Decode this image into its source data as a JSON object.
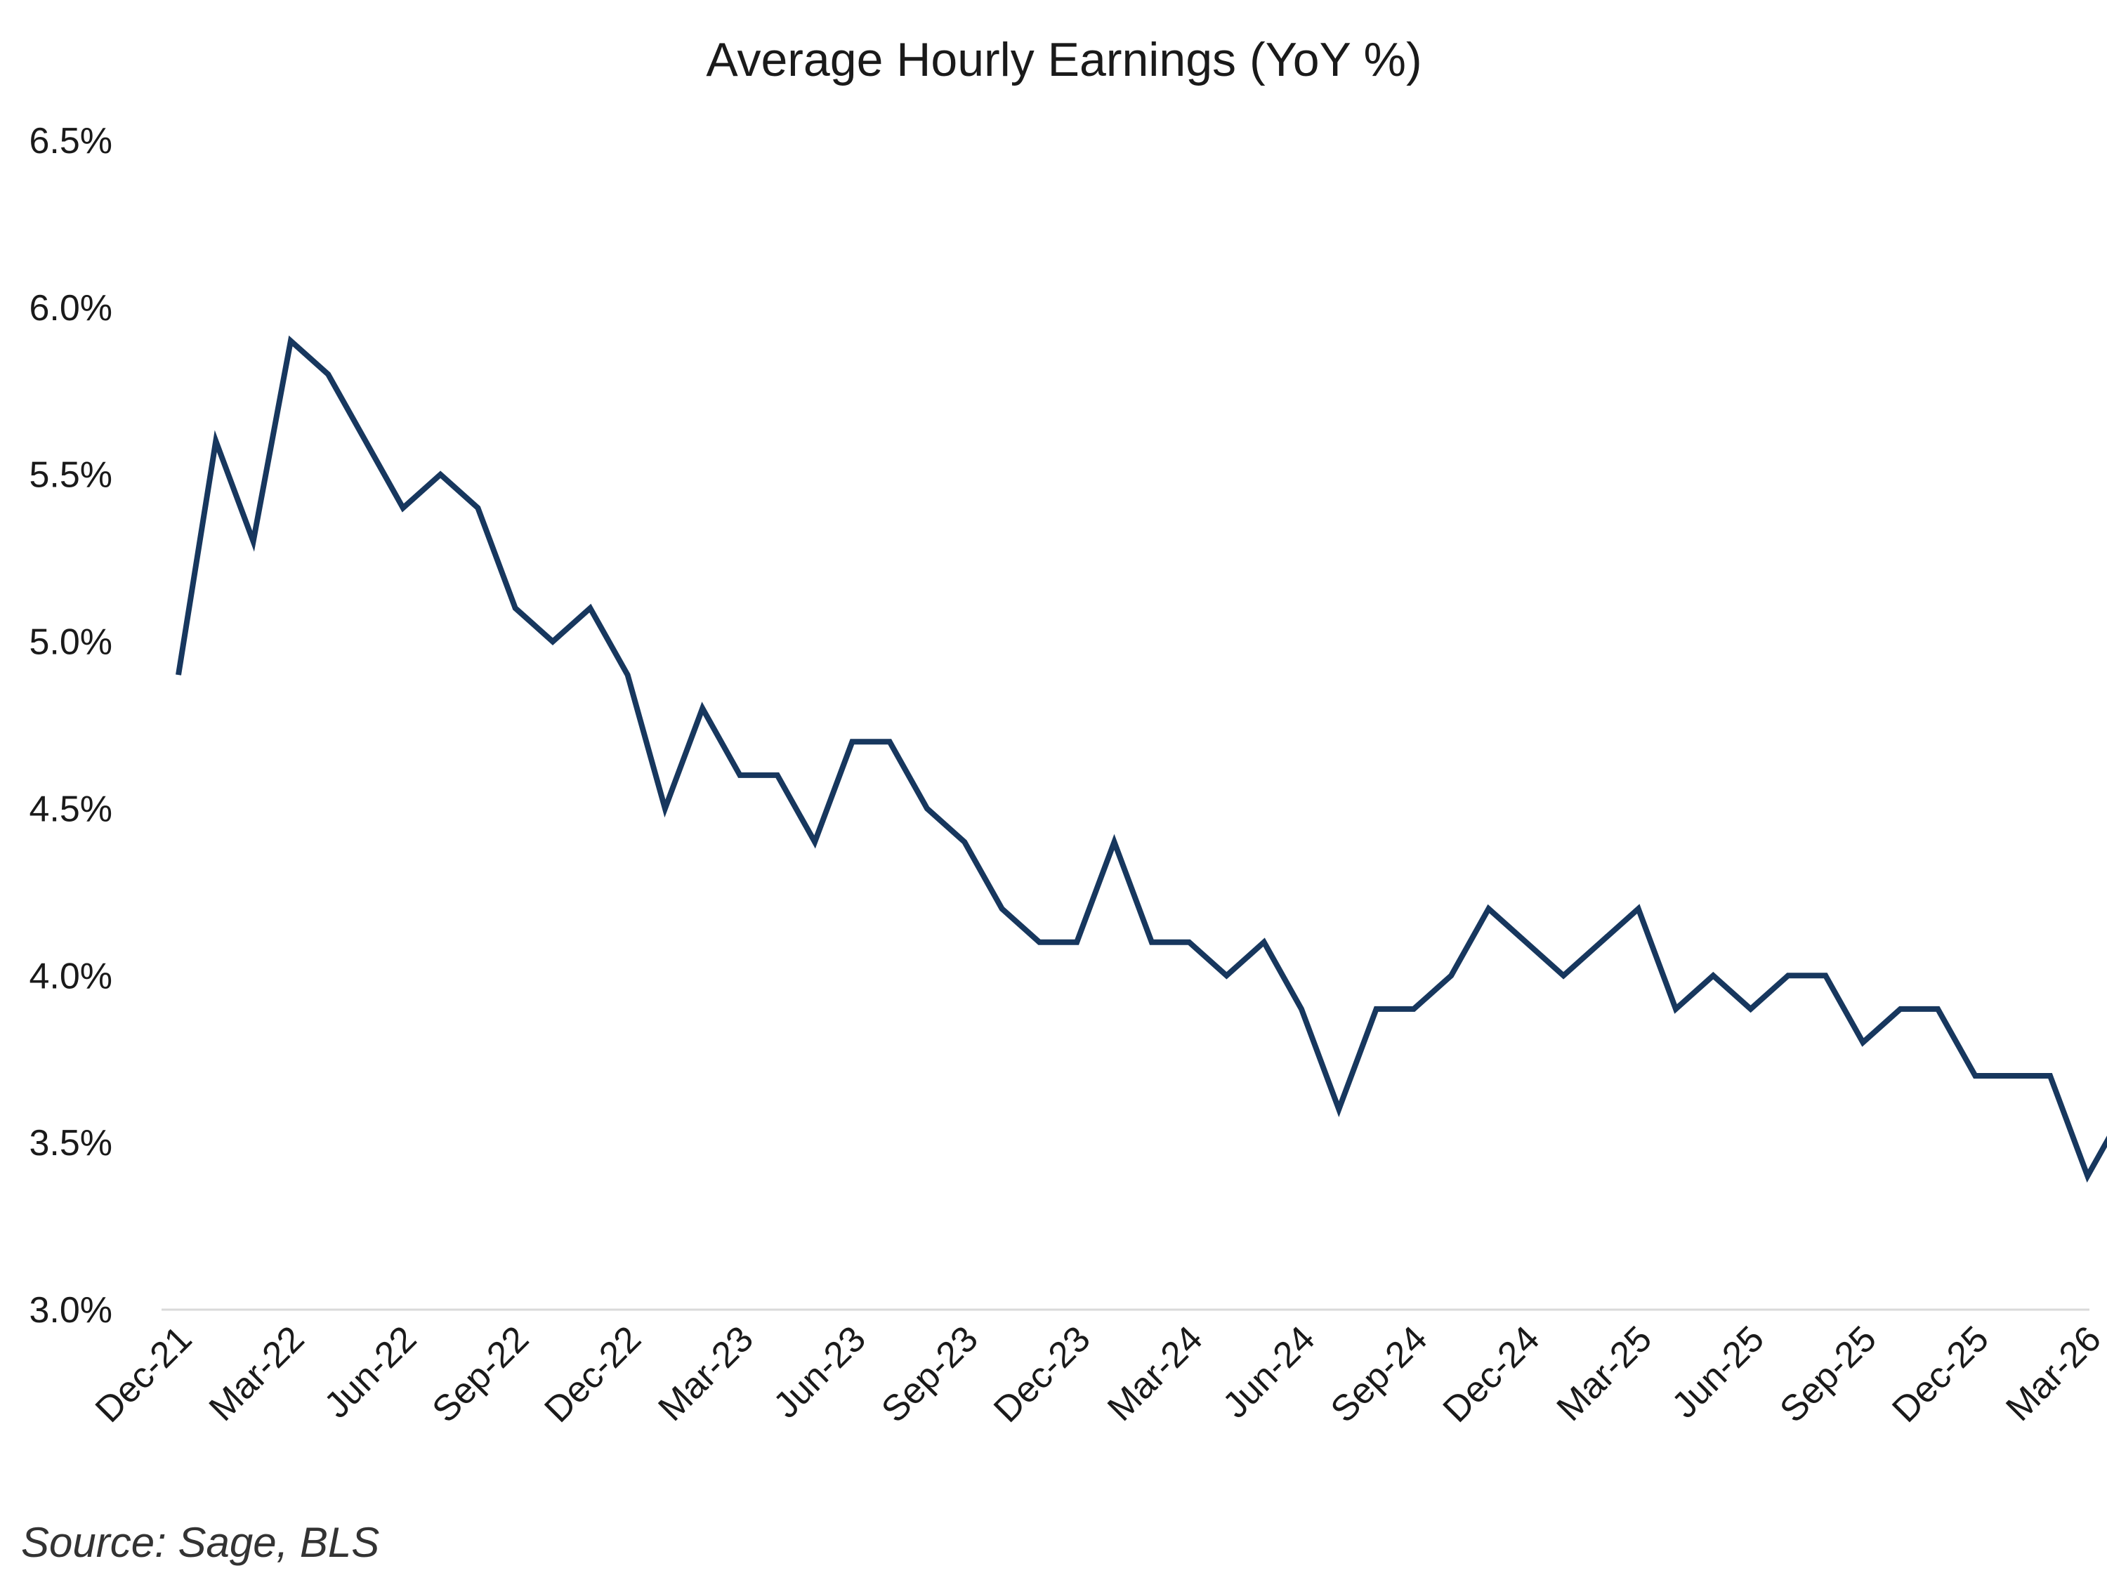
{
  "chart_data": {
    "type": "line",
    "title": "Average Hourly Earnings (YoY %)",
    "xlabel": "",
    "ylabel": "",
    "ylim": [
      3.0,
      6.5
    ],
    "y_ticks": [
      "3.0%",
      "3.5%",
      "4.0%",
      "4.5%",
      "5.0%",
      "5.5%",
      "6.0%",
      "6.5%"
    ],
    "y_tick_values": [
      3.0,
      3.5,
      4.0,
      4.5,
      5.0,
      5.5,
      6.0,
      6.5
    ],
    "x_tick_labels": [
      "Dec-21",
      "Mar-22",
      "Jun-22",
      "Sep-22",
      "Dec-22",
      "Mar-23",
      "Jun-23",
      "Sep-23",
      "Dec-23",
      "Mar-24",
      "Jun-24",
      "Sep-24",
      "Dec-24",
      "Mar-25",
      "Jun-25",
      "Sep-25",
      "Dec-25",
      "Mar-26"
    ],
    "grid": false,
    "legend": "none",
    "line_color": "#17375e",
    "x": [
      "Dec-21",
      "Jan-22",
      "Feb-22",
      "Mar-22",
      "Apr-22",
      "May-22",
      "Jun-22",
      "Jul-22",
      "Aug-22",
      "Sep-22",
      "Oct-22",
      "Nov-22",
      "Dec-22",
      "Jan-23",
      "Feb-23",
      "Mar-23",
      "Apr-23",
      "May-23",
      "Jun-23",
      "Jul-23",
      "Aug-23",
      "Sep-23",
      "Oct-23",
      "Nov-23",
      "Dec-23",
      "Jan-24",
      "Feb-24",
      "Mar-24",
      "Apr-24",
      "May-24",
      "Jun-24",
      "Jul-24",
      "Aug-24",
      "Sep-24",
      "Oct-24",
      "Nov-24",
      "Dec-24",
      "Jan-25",
      "Feb-25",
      "Mar-25",
      "Apr-25",
      "May-25",
      "Jun-25",
      "Jul-25",
      "Aug-25",
      "Sep-25",
      "Oct-25",
      "Nov-25",
      "Dec-25",
      "Jan-26",
      "Feb-26",
      "Mar-26",
      "Apr-26"
    ],
    "series": [
      {
        "values": [
          4.9,
          5.6,
          5.3,
          5.9,
          5.8,
          5.6,
          5.4,
          5.5,
          5.4,
          5.1,
          5.0,
          5.1,
          4.9,
          4.5,
          4.8,
          4.6,
          4.6,
          4.4,
          4.7,
          4.7,
          4.5,
          4.4,
          4.2,
          4.1,
          4.1,
          4.4,
          4.1,
          4.1,
          4.0,
          4.1,
          3.9,
          3.6,
          3.9,
          3.9,
          4.0,
          4.2,
          4.1,
          4.0,
          4.1,
          4.2,
          3.9,
          4.0,
          3.9,
          4.0,
          4.0,
          3.8,
          3.9,
          3.9,
          3.7,
          3.7,
          3.7,
          3.4,
          3.6
        ]
      }
    ]
  },
  "footer": {
    "source": "Source: Sage, BLS"
  }
}
